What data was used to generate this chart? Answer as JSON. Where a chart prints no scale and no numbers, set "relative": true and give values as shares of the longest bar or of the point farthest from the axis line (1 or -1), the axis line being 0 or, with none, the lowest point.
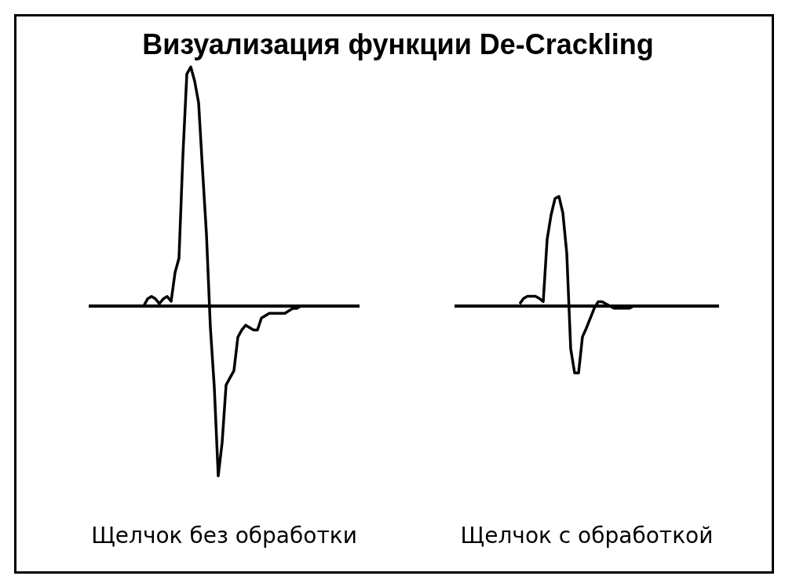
{
  "chart_data": [
    {
      "type": "line",
      "title": "Визуализация функции De-Crackling",
      "relative": true,
      "legend": false,
      "marker": "none",
      "line_style": "solid",
      "categories": [
        null,
        null,
        null,
        null,
        null,
        null,
        null,
        null,
        null,
        null,
        null,
        null,
        null,
        null,
        null,
        null,
        null,
        null,
        null,
        null,
        null,
        null,
        null,
        null,
        null,
        null,
        null,
        null,
        null,
        null,
        null,
        null,
        null,
        null,
        null,
        null,
        null,
        null,
        null,
        null,
        null,
        null
      ],
      "series": [
        {
          "name": "Щелчок без обработки",
          "color": "#000000",
          "values": [
            0,
            0.03,
            0.04,
            0.03,
            0.01,
            0.03,
            0.04,
            0.02,
            0.14,
            0.2,
            0.63,
            0.97,
            1,
            0.94,
            0.85,
            0.57,
            0.3,
            -0.09,
            -0.34,
            -0.71,
            -0.57,
            -0.33,
            -0.3,
            -0.27,
            -0.13,
            -0.1,
            -0.08,
            -0.09,
            -0.1,
            -0.1,
            -0.05,
            -0.04,
            -0.03,
            -0.03,
            -0.03,
            -0.03,
            -0.03,
            -0.02,
            -0.01,
            -0.01,
            0,
            0
          ]
        }
      ]
    },
    {
      "type": "line",
      "relative": true,
      "legend": false,
      "marker": "none",
      "line_style": "solid",
      "categories": [
        null,
        null,
        null,
        null,
        null,
        null,
        null,
        null,
        null,
        null,
        null,
        null,
        null,
        null,
        null,
        null,
        null,
        null,
        null,
        null,
        null,
        null,
        null,
        null,
        null,
        null,
        null,
        null,
        null,
        null
      ],
      "series": [
        {
          "name": "Щелчок с обработкой",
          "color": "#000000",
          "values": [
            0.02,
            0.07,
            0.09,
            0.09,
            0.09,
            0.07,
            0.04,
            0.61,
            0.83,
            0.98,
            1,
            0.85,
            0.48,
            -0.39,
            -0.61,
            -0.61,
            -0.28,
            -0.2,
            -0.11,
            -0.02,
            0.04,
            0.04,
            0.02,
            0,
            -0.02,
            -0.02,
            -0.02,
            -0.02,
            -0.02,
            0
          ]
        }
      ]
    }
  ]
}
